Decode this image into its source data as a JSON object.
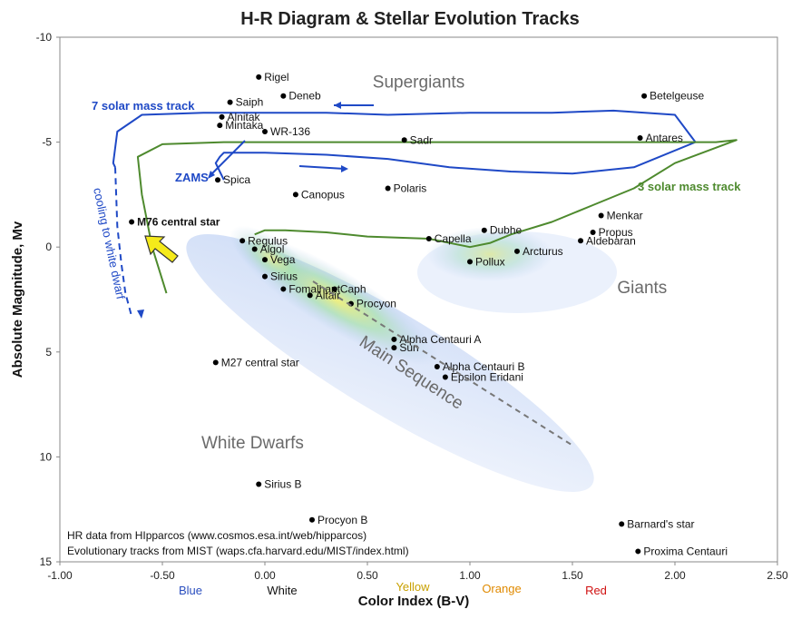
{
  "chart_data": {
    "type": "scatter",
    "title": "H-R Diagram & Stellar Evolution Tracks",
    "xlabel": "Color Index (B-V)",
    "ylabel": "Absolute Magnitude, Mv",
    "xlim": [
      -1.0,
      2.5
    ],
    "ylim": [
      15,
      -10
    ],
    "y_inverted": true,
    "grid": false,
    "x_ticks": [
      "-1.00",
      "-0.50",
      "0.00",
      "0.50",
      "1.00",
      "1.50",
      "2.00",
      "2.50"
    ],
    "y_ticks": [
      "-10",
      "-5",
      "0",
      "5",
      "10",
      "15"
    ],
    "color_labels": [
      {
        "text": "Blue",
        "color": "#2b4fbf"
      },
      {
        "text": "White",
        "color": "#111111"
      },
      {
        "text": "Yellow",
        "color": "#c8a000"
      },
      {
        "text": "Orange",
        "color": "#e08a00"
      },
      {
        "text": "Red",
        "color": "#d01010"
      }
    ],
    "stars": [
      {
        "name": "Rigel",
        "x": -0.03,
        "y": -8.1
      },
      {
        "name": "Deneb",
        "x": 0.09,
        "y": -7.2
      },
      {
        "name": "Saiph",
        "x": -0.17,
        "y": -6.9
      },
      {
        "name": "Alnitak",
        "x": -0.21,
        "y": -6.2
      },
      {
        "name": "Mintaka",
        "x": -0.22,
        "y": -5.8
      },
      {
        "name": "WR-136",
        "x": 0.0,
        "y": -5.5
      },
      {
        "name": "Sadr",
        "x": 0.68,
        "y": -5.1
      },
      {
        "name": "Betelgeuse",
        "x": 1.85,
        "y": -7.2
      },
      {
        "name": "Antares",
        "x": 1.83,
        "y": -5.2
      },
      {
        "name": "Spica",
        "x": -0.23,
        "y": -3.2
      },
      {
        "name": "Canopus",
        "x": 0.15,
        "y": -2.5
      },
      {
        "name": "Polaris",
        "x": 0.6,
        "y": -2.8
      },
      {
        "name": "M76 central star",
        "x": -0.65,
        "y": -1.2
      },
      {
        "name": "Menkar",
        "x": 1.64,
        "y": -1.5
      },
      {
        "name": "Dubhe",
        "x": 1.07,
        "y": -0.8
      },
      {
        "name": "Propus",
        "x": 1.6,
        "y": -0.7
      },
      {
        "name": "Capella",
        "x": 0.8,
        "y": -0.4
      },
      {
        "name": "Aldebaran",
        "x": 1.54,
        "y": -0.3
      },
      {
        "name": "Regulus",
        "x": -0.11,
        "y": -0.3
      },
      {
        "name": "Arcturus",
        "x": 1.23,
        "y": 0.2
      },
      {
        "name": "Algol",
        "x": -0.05,
        "y": 0.1
      },
      {
        "name": "Vega",
        "x": 0.0,
        "y": 0.6
      },
      {
        "name": "Pollux",
        "x": 1.0,
        "y": 0.7
      },
      {
        "name": "Sirius",
        "x": 0.0,
        "y": 1.4
      },
      {
        "name": "Fomalhaut",
        "x": 0.09,
        "y": 2.0
      },
      {
        "name": "Caph",
        "x": 0.34,
        "y": 2.0
      },
      {
        "name": "Altair",
        "x": 0.22,
        "y": 2.3
      },
      {
        "name": "Procyon",
        "x": 0.42,
        "y": 2.7
      },
      {
        "name": "Alpha Centauri A",
        "x": 0.63,
        "y": 4.4
      },
      {
        "name": "Sun",
        "x": 0.63,
        "y": 4.8
      },
      {
        "name": "M27 central star",
        "x": -0.24,
        "y": 5.5
      },
      {
        "name": "Alpha Centauri B",
        "x": 0.84,
        "y": 5.7
      },
      {
        "name": "Epsilon Eridani",
        "x": 0.88,
        "y": 6.2
      },
      {
        "name": "Sirius B",
        "x": -0.03,
        "y": 11.3
      },
      {
        "name": "Procyon B",
        "x": 0.23,
        "y": 13.0
      },
      {
        "name": "Barnard's star",
        "x": 1.74,
        "y": 13.2
      },
      {
        "name": "Proxima Centauri",
        "x": 1.82,
        "y": 14.5
      }
    ],
    "regions": [
      {
        "text": "Supergiants",
        "x": 0.75,
        "y": -7.6
      },
      {
        "text": "Giants",
        "x": 1.84,
        "y": 2.2
      },
      {
        "text": "Main Sequence",
        "x": 0.7,
        "y": 6.2
      },
      {
        "text": "White Dwarfs",
        "x": -0.06,
        "y": 9.6
      }
    ],
    "series": [
      {
        "name": "7 solar mass track",
        "color": "#1f49c6",
        "x": [
          -0.2,
          -0.22,
          -0.24,
          -0.22,
          -0.2,
          0.0,
          0.3,
          0.6,
          0.9,
          1.2,
          1.5,
          1.8,
          2.1,
          2.0,
          1.7,
          1.4,
          1.0,
          0.6,
          0.3,
          0.0,
          -0.3,
          -0.6,
          -0.72,
          -0.74,
          -0.73
        ],
        "y": [
          -3.2,
          -3.6,
          -4.0,
          -4.3,
          -4.5,
          -4.5,
          -4.4,
          -4.2,
          -3.8,
          -3.6,
          -3.5,
          -3.8,
          -5.0,
          -6.3,
          -6.5,
          -6.4,
          -6.4,
          -6.3,
          -6.4,
          -6.4,
          -6.4,
          -6.3,
          -5.5,
          -4.0,
          -3.8
        ]
      },
      {
        "name": "3 solar mass track",
        "color": "#4e8a2e",
        "x": [
          -0.05,
          0.0,
          0.1,
          0.3,
          0.5,
          0.8,
          1.0,
          1.1,
          1.2,
          1.4,
          1.6,
          1.8,
          2.0,
          2.3,
          2.2,
          1.8,
          1.4,
          1.0,
          0.6,
          0.2,
          -0.2,
          -0.5,
          -0.62,
          -0.6,
          -0.55,
          -0.48
        ],
        "y": [
          -0.6,
          -0.8,
          -0.8,
          -0.7,
          -0.5,
          -0.4,
          0.0,
          -0.2,
          -0.6,
          -1.2,
          -2.0,
          -2.8,
          -4.0,
          -5.1,
          -5.0,
          -5.0,
          -5.0,
          -5.0,
          -5.0,
          -5.0,
          -5.0,
          -4.9,
          -4.3,
          -2.5,
          0.0,
          2.2
        ]
      },
      {
        "name": "cooling to white dwarf",
        "color": "#1f49c6",
        "dashed": true,
        "x": [
          -0.73,
          -0.72,
          -0.7,
          -0.68,
          -0.65
        ],
        "y": [
          -3.8,
          -1.0,
          0.8,
          2.2,
          3.3
        ]
      }
    ],
    "annotations": [
      {
        "text": "7 solar mass track",
        "color": "#1f49c6"
      },
      {
        "text": "3 solar mass track",
        "color": "#4e8a2e"
      },
      {
        "text": "ZAMS",
        "color": "#1f49c6"
      },
      {
        "text": "cooling to white dwarf",
        "color": "#1f49c6"
      },
      {
        "text": "HR data from HIpparcos (www.cosmos.esa.int/web/hipparcos)",
        "color": "#111111"
      },
      {
        "text": "Evolutionary tracks from MIST (waps.cfa.harvard.edu/MIST/index.html)",
        "color": "#111111"
      }
    ]
  }
}
